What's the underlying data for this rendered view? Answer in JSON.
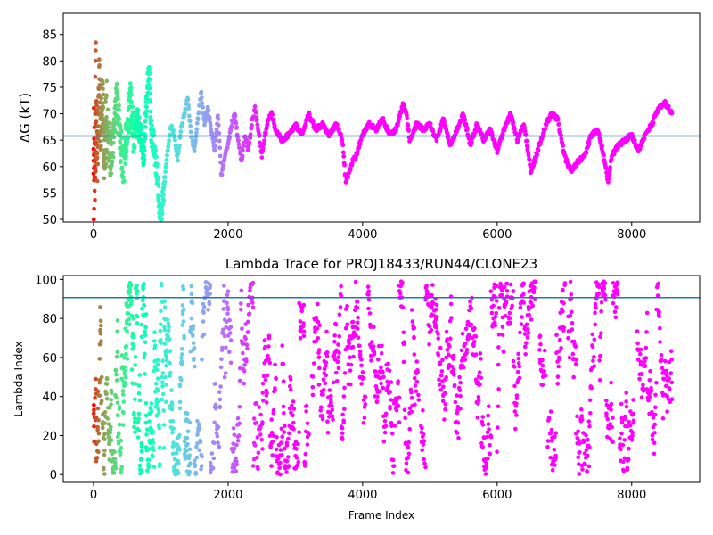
{
  "chart_data": [
    {
      "type": "scatter",
      "title": "",
      "xlabel": "",
      "ylabel": "ΔG (kT)",
      "xlim": [
        -450,
        9010
      ],
      "ylim": [
        49.5,
        89
      ],
      "xticks": [
        0,
        2000,
        4000,
        6000,
        8000
      ],
      "yticks": [
        50,
        55,
        60,
        65,
        70,
        75,
        80,
        85
      ],
      "reference_line": {
        "y": 65.8,
        "color": "#1f77b4"
      },
      "colormap": "rainbow (early frames red/yellow/green, later frames blue/violet)",
      "trace_anchors": {
        "x": [
          1,
          20,
          40,
          60,
          80,
          100,
          130,
          160,
          200,
          250,
          300,
          350,
          400,
          450,
          500,
          550,
          600,
          650,
          700,
          750,
          800,
          830,
          850,
          900,
          950,
          980,
          1000,
          1040,
          1100,
          1150,
          1200,
          1250,
          1300,
          1350,
          1400,
          1450,
          1500,
          1550,
          1600,
          1650,
          1700,
          1750,
          1800,
          1850,
          1900,
          1950,
          2000,
          2050,
          2100,
          2150,
          2200,
          2250,
          2300,
          2350,
          2400,
          2450,
          2500,
          2550,
          2600,
          2650,
          2700,
          2800,
          2900,
          3000,
          3100,
          3200,
          3300,
          3400,
          3500,
          3600,
          3650,
          3700,
          3750,
          3800,
          3850,
          3900,
          4000,
          4100,
          4200,
          4300,
          4400,
          4500,
          4600,
          4650,
          4700,
          4800,
          4900,
          5000,
          5100,
          5200,
          5300,
          5400,
          5500,
          5600,
          5700,
          5800,
          5900,
          6000,
          6100,
          6200,
          6300,
          6400,
          6500,
          6600,
          6700,
          6800,
          6900,
          7000,
          7100,
          7200,
          7300,
          7400,
          7500,
          7600,
          7650,
          7700,
          7800,
          7900,
          8000,
          8100,
          8200,
          8300,
          8400,
          8500,
          8600
        ],
        "y": [
          65,
          60,
          70,
          62,
          77,
          68,
          74,
          62,
          70,
          61,
          66,
          73,
          64,
          60,
          68,
          72,
          65,
          69,
          66,
          62,
          75,
          78,
          67,
          64,
          58,
          52,
          50,
          55,
          63,
          68,
          66,
          61,
          67,
          70,
          73,
          66,
          63,
          69,
          74,
          68,
          71,
          67,
          63,
          70,
          58,
          62,
          64,
          68,
          70,
          65,
          61,
          66,
          63,
          68,
          71,
          67,
          62,
          66,
          69,
          70,
          67,
          65,
          66,
          68,
          66,
          70,
          67,
          68,
          66,
          68,
          67,
          65,
          57,
          59,
          61,
          62,
          66,
          68,
          67,
          69,
          66,
          67,
          72,
          70,
          65,
          68,
          67,
          68,
          65,
          69,
          64,
          67,
          70,
          64,
          68,
          65,
          67,
          63,
          67,
          70,
          65,
          68,
          59,
          63,
          67,
          70,
          69,
          62,
          59,
          61,
          62,
          66,
          67,
          61,
          57,
          62,
          64,
          65,
          66,
          63,
          66,
          68,
          71,
          72,
          70
        ]
      }
    },
    {
      "type": "scatter",
      "title": "Lambda Trace for PROJ18433/RUN44/CLONE23",
      "xlabel": "Frame Index",
      "ylabel": "Lambda Index",
      "xlim": [
        -450,
        9010
      ],
      "ylim": [
        -4,
        102
      ],
      "xticks": [
        0,
        2000,
        4000,
        6000,
        8000
      ],
      "yticks": [
        0,
        20,
        40,
        60,
        80,
        100
      ],
      "reference_line": {
        "y": 90.7,
        "color": "#1f77b4"
      },
      "colormap": "rainbow (early frames red/yellow/green, later frames blue/violet)",
      "value_range": [
        0,
        99
      ],
      "frame_range": [
        0,
        8600
      ]
    }
  ],
  "figure": {
    "ticks": {
      "x": [
        "0",
        "2000",
        "4000",
        "6000",
        "8000"
      ],
      "top_y": [
        "50",
        "55",
        "60",
        "65",
        "70",
        "75",
        "80",
        "85"
      ],
      "bottom_y": [
        "0",
        "20",
        "40",
        "60",
        "80",
        "100"
      ]
    }
  }
}
